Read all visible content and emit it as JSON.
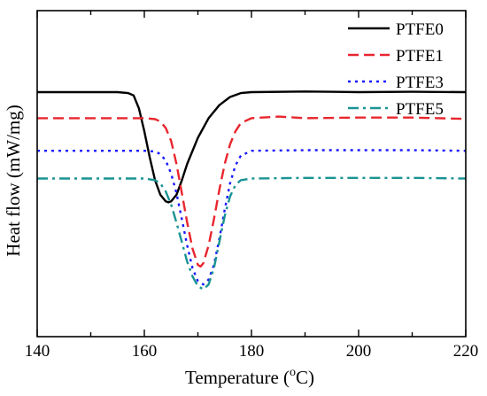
{
  "chart_data": {
    "type": "line",
    "xlabel_main": "Temperature (",
    "xlabel_sup": "o",
    "xlabel_end": "C)",
    "ylabel": "Heat flow (mW/mg)",
    "xlim": [
      140,
      220
    ],
    "x_ticks": [
      "140",
      "160",
      "180",
      "200",
      "220"
    ],
    "y_ticks_labeled": false,
    "legend_position": "top-right",
    "series": [
      {
        "name": "PTFE0",
        "color": "#000000",
        "dash": "solid",
        "points": [
          [
            140,
            7.5
          ],
          [
            155,
            7.5
          ],
          [
            157,
            7.47
          ],
          [
            158,
            7.4
          ],
          [
            159,
            7.0
          ],
          [
            160,
            6.3
          ],
          [
            161,
            5.5
          ],
          [
            162,
            4.8
          ],
          [
            163,
            4.35
          ],
          [
            164,
            4.15
          ],
          [
            164.5,
            4.12
          ],
          [
            165,
            4.15
          ],
          [
            166,
            4.35
          ],
          [
            167,
            4.8
          ],
          [
            168,
            5.3
          ],
          [
            170,
            6.1
          ],
          [
            172,
            6.7
          ],
          [
            174,
            7.1
          ],
          [
            176,
            7.35
          ],
          [
            178,
            7.47
          ],
          [
            180,
            7.5
          ],
          [
            190,
            7.52
          ],
          [
            200,
            7.5
          ],
          [
            210,
            7.51
          ],
          [
            220,
            7.5
          ]
        ]
      },
      {
        "name": "PTFE1",
        "color": "#e8262e",
        "dash": "dashed",
        "points": [
          [
            140,
            6.7
          ],
          [
            160,
            6.7
          ],
          [
            162,
            6.67
          ],
          [
            163,
            6.6
          ],
          [
            164,
            6.4
          ],
          [
            165,
            6.0
          ],
          [
            166,
            5.3
          ],
          [
            167,
            4.4
          ],
          [
            168,
            3.5
          ],
          [
            169,
            2.7
          ],
          [
            170,
            2.2
          ],
          [
            170.5,
            2.15
          ],
          [
            171,
            2.25
          ],
          [
            172,
            2.8
          ],
          [
            173,
            3.6
          ],
          [
            174,
            4.5
          ],
          [
            175,
            5.3
          ],
          [
            176,
            5.9
          ],
          [
            177,
            6.3
          ],
          [
            178,
            6.55
          ],
          [
            180,
            6.7
          ],
          [
            185,
            6.75
          ],
          [
            190,
            6.7
          ],
          [
            200,
            6.72
          ],
          [
            210,
            6.72
          ],
          [
            220,
            6.68
          ]
        ]
      },
      {
        "name": "PTFE3",
        "color": "#1a1aff",
        "dash": "dotted",
        "points": [
          [
            140,
            5.7
          ],
          [
            160,
            5.7
          ],
          [
            162,
            5.68
          ],
          [
            163,
            5.6
          ],
          [
            164,
            5.4
          ],
          [
            165,
            5.0
          ],
          [
            166,
            4.4
          ],
          [
            167,
            3.6
          ],
          [
            168,
            2.8
          ],
          [
            169,
            2.1
          ],
          [
            170,
            1.7
          ],
          [
            171,
            1.6
          ],
          [
            172,
            1.75
          ],
          [
            173,
            2.2
          ],
          [
            174,
            3.0
          ],
          [
            175,
            3.9
          ],
          [
            176,
            4.7
          ],
          [
            177,
            5.25
          ],
          [
            178,
            5.55
          ],
          [
            180,
            5.7
          ],
          [
            190,
            5.72
          ],
          [
            200,
            5.72
          ],
          [
            210,
            5.72
          ],
          [
            220,
            5.7
          ]
        ]
      },
      {
        "name": "PTFE5",
        "color": "#1a9393",
        "dash": "dashdot",
        "points": [
          [
            140,
            4.85
          ],
          [
            160,
            4.85
          ],
          [
            162,
            4.8
          ],
          [
            163,
            4.7
          ],
          [
            164,
            4.45
          ],
          [
            165,
            4.05
          ],
          [
            166,
            3.5
          ],
          [
            167,
            2.9
          ],
          [
            168,
            2.3
          ],
          [
            169,
            1.85
          ],
          [
            170,
            1.55
          ],
          [
            171,
            1.45
          ],
          [
            172,
            1.6
          ],
          [
            173,
            2.1
          ],
          [
            174,
            2.9
          ],
          [
            175,
            3.7
          ],
          [
            176,
            4.3
          ],
          [
            177,
            4.65
          ],
          [
            178,
            4.8
          ],
          [
            180,
            4.85
          ],
          [
            190,
            4.87
          ],
          [
            200,
            4.87
          ],
          [
            210,
            4.87
          ],
          [
            220,
            4.85
          ]
        ]
      }
    ]
  }
}
